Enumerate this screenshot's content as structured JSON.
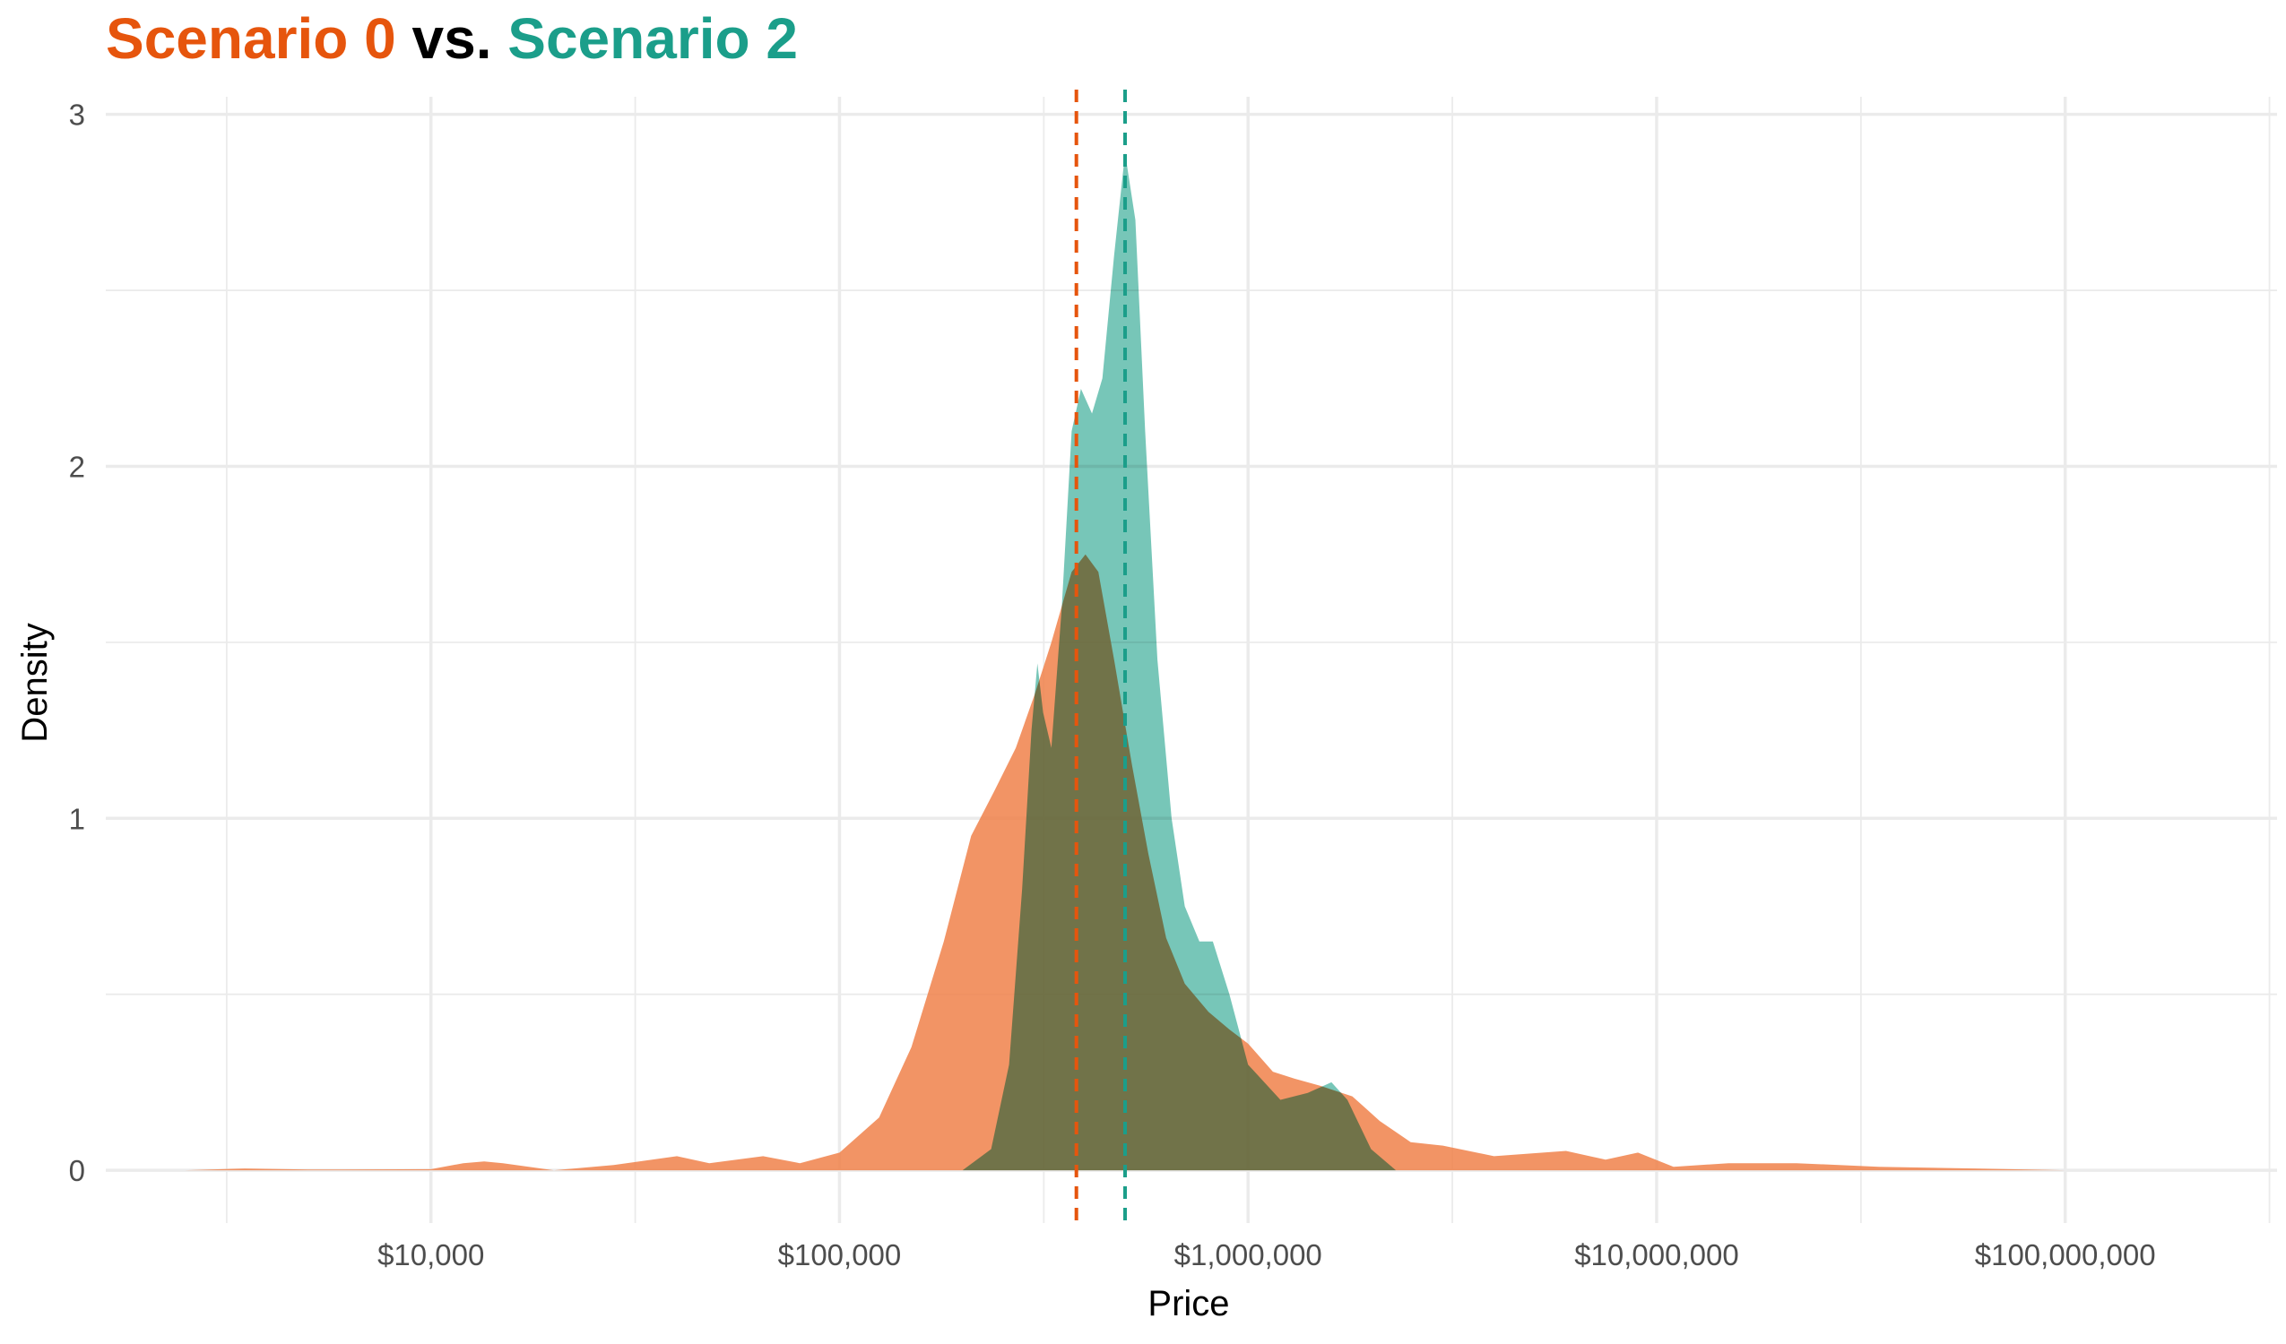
{
  "title": {
    "part1": "Scenario 0",
    "part2": " vs. ",
    "part3": "Scenario 2",
    "color1": "#E6550D",
    "color2": "#000000",
    "color3": "#1B9E8A"
  },
  "chart_data": {
    "type": "area",
    "xlabel": "Price",
    "ylabel": "Density",
    "x_scale": "log10",
    "xlim": [
      1600,
      330000000
    ],
    "ylim": [
      -0.15,
      3.05
    ],
    "x_ticks": [
      10000,
      100000,
      1000000,
      10000000,
      100000000
    ],
    "x_tick_labels": [
      "$10,000",
      "$100,000",
      "$1,000,000",
      "$10,000,000",
      "$100,000,000"
    ],
    "y_ticks": [
      0,
      1,
      2,
      3
    ],
    "y_tick_labels": [
      "0",
      "1",
      "2",
      "3"
    ],
    "grid": true,
    "legend": "none",
    "series": [
      {
        "name": "Scenario 0",
        "color": "#F0814A",
        "median_line": 380000,
        "median_color": "#E6550D",
        "points": [
          [
            2500,
            0.0
          ],
          [
            3500,
            0.005
          ],
          [
            5000,
            0.002
          ],
          [
            10000,
            0.003
          ],
          [
            12000,
            0.02
          ],
          [
            13500,
            0.025
          ],
          [
            15000,
            0.02
          ],
          [
            20000,
            0.0
          ],
          [
            28000,
            0.015
          ],
          [
            40000,
            0.04
          ],
          [
            48000,
            0.02
          ],
          [
            65000,
            0.04
          ],
          [
            80000,
            0.02
          ],
          [
            100000,
            0.05
          ],
          [
            125000,
            0.15
          ],
          [
            150000,
            0.35
          ],
          [
            180000,
            0.65
          ],
          [
            210000,
            0.95
          ],
          [
            240000,
            1.08
          ],
          [
            270000,
            1.2
          ],
          [
            300000,
            1.35
          ],
          [
            330000,
            1.5
          ],
          [
            370000,
            1.7
          ],
          [
            400000,
            1.75
          ],
          [
            430000,
            1.7
          ],
          [
            470000,
            1.45
          ],
          [
            520000,
            1.15
          ],
          [
            570000,
            0.9
          ],
          [
            630000,
            0.66
          ],
          [
            700000,
            0.53
          ],
          [
            800000,
            0.45
          ],
          [
            900000,
            0.4
          ],
          [
            1000000,
            0.36
          ],
          [
            1150000,
            0.28
          ],
          [
            1300000,
            0.26
          ],
          [
            1500000,
            0.24
          ],
          [
            1800000,
            0.21
          ],
          [
            2100000,
            0.14
          ],
          [
            2500000,
            0.08
          ],
          [
            3000000,
            0.07
          ],
          [
            4000000,
            0.04
          ],
          [
            6000000,
            0.055
          ],
          [
            7500000,
            0.03
          ],
          [
            9000000,
            0.05
          ],
          [
            11000000,
            0.01
          ],
          [
            15000000,
            0.02
          ],
          [
            22000000,
            0.02
          ],
          [
            35000000,
            0.01
          ],
          [
            60000000,
            0.005
          ],
          [
            100000000,
            0.0
          ],
          [
            180000000,
            0.0
          ]
        ]
      },
      {
        "name": "Scenario 2",
        "color": "#5FBCAB",
        "median_line": 500000,
        "median_color": "#1B9E8A",
        "points": [
          [
            200000,
            0.0
          ],
          [
            235000,
            0.06
          ],
          [
            260000,
            0.3
          ],
          [
            280000,
            0.8
          ],
          [
            295000,
            1.25
          ],
          [
            305000,
            1.44
          ],
          [
            315000,
            1.3
          ],
          [
            330000,
            1.2
          ],
          [
            350000,
            1.6
          ],
          [
            370000,
            2.1
          ],
          [
            390000,
            2.22
          ],
          [
            415000,
            2.15
          ],
          [
            440000,
            2.25
          ],
          [
            470000,
            2.6
          ],
          [
            500000,
            2.89
          ],
          [
            530000,
            2.7
          ],
          [
            560000,
            2.1
          ],
          [
            600000,
            1.45
          ],
          [
            650000,
            1.0
          ],
          [
            700000,
            0.75
          ],
          [
            760000,
            0.65
          ],
          [
            820000,
            0.65
          ],
          [
            900000,
            0.5
          ],
          [
            1000000,
            0.3
          ],
          [
            1200000,
            0.2
          ],
          [
            1400000,
            0.22
          ],
          [
            1600000,
            0.25
          ],
          [
            1750000,
            0.2
          ],
          [
            2000000,
            0.06
          ],
          [
            2300000,
            0.0
          ]
        ]
      }
    ]
  }
}
